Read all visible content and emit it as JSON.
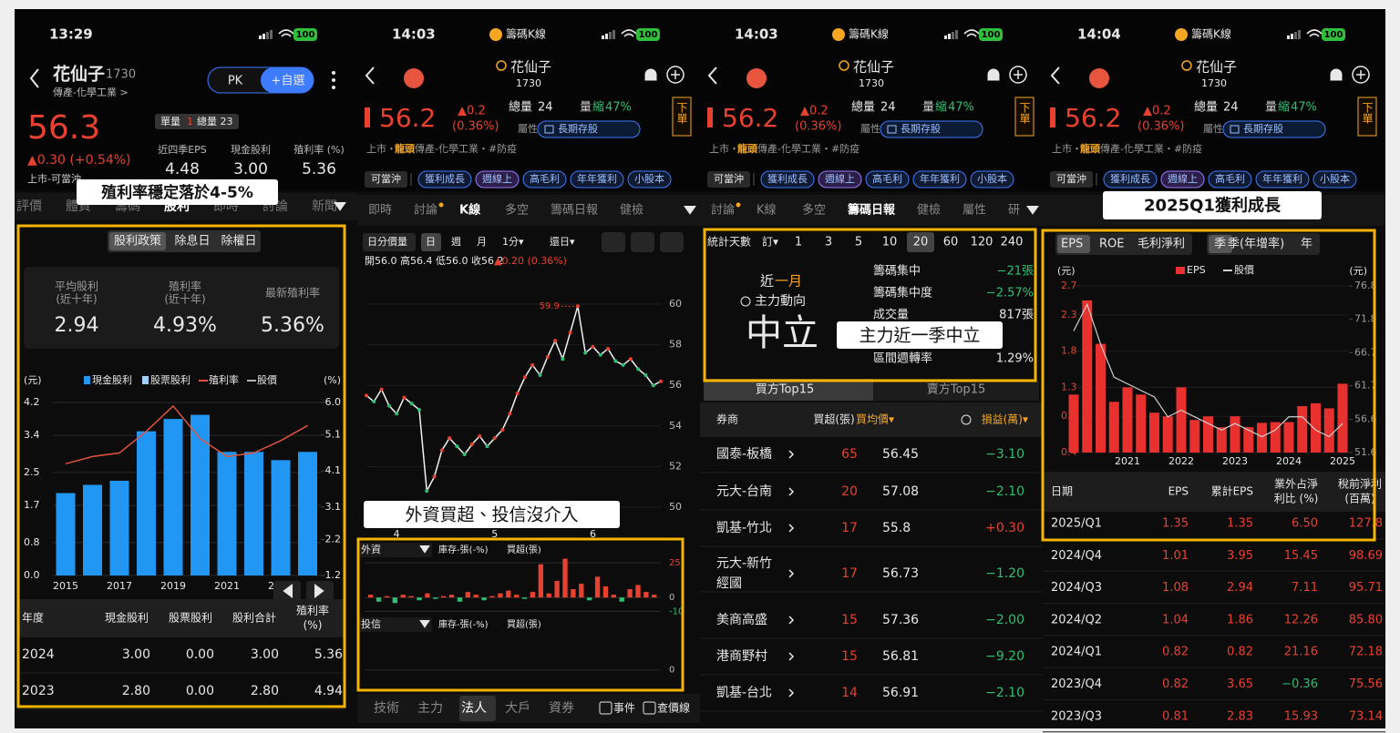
{
  "annotations": {
    "p1": "殖利率穩定落於4-5%",
    "p2": "外資買超、投信沒介入",
    "p3": "主力近一季中立",
    "p4": "2025Q1獲利成長"
  },
  "stock": {
    "name": "花仙子",
    "code": "1730"
  },
  "quote": {
    "app": "籌碼K線",
    "battery": "100",
    "price": "56.2",
    "change": "▲0.2",
    "change_pct": "(0.36%)",
    "total_vol_label": "總量",
    "total_vol": "24",
    "vol_ratio": [
      "量",
      "縮",
      "47%"
    ],
    "attr_label": "屬性",
    "attr": "長期存股",
    "order": "下單",
    "industry": [
      "上市・",
      "龍頭",
      "傳產-化學工業・#防疫"
    ],
    "tags": [
      "可當沖",
      "獲利成長",
      "週線上",
      "高毛利",
      "年年獲利",
      "小股本"
    ]
  },
  "panel1": {
    "time": "13:29",
    "battery": "100",
    "industry": "傳產-化學工業 >",
    "pk": "PK",
    "add": "+自選",
    "price": "56.3",
    "change": "▲0.30 (+0.54%)",
    "market": "上市-可當沖",
    "single_vol_label": "單量",
    "single_vol": "1",
    "total_vol": "總量 23",
    "stats": [
      [
        "近四季EPS",
        "4.48"
      ],
      [
        "現金股利",
        "3.00"
      ],
      [
        "殖利率 (%)",
        "5.36"
      ]
    ],
    "tabs": [
      "評價",
      "體質",
      "籌碼",
      "股利",
      "即時",
      "討論",
      "新聞"
    ],
    "sub_tabs": [
      "股利政策",
      "除息日",
      "除權日"
    ],
    "summary": [
      {
        "label": [
          "平均股利",
          "(近十年)"
        ],
        "value": "2.94"
      },
      {
        "label": [
          "殖利率",
          "(近十年)"
        ],
        "value": "4.93%"
      },
      {
        "label": [
          "最新殖利率"
        ],
        "value": "5.36%"
      }
    ],
    "chart": {
      "type": "bar",
      "y_unit": "(元)",
      "y2_unit": "(%)",
      "categories": [
        "2015",
        null,
        "2017",
        null,
        "2019",
        null,
        "2021",
        null,
        "2023",
        null
      ],
      "series": [
        {
          "name": "現金股利",
          "color": "#2196f3",
          "kind": "bar",
          "values": [
            2.0,
            2.2,
            2.3,
            3.5,
            3.8,
            3.9,
            3.0,
            3.0,
            2.8,
            3.0
          ]
        },
        {
          "name": "股票股利",
          "color": "#9fd0ff",
          "kind": "bar",
          "values": [
            0,
            0,
            0,
            0,
            0,
            0,
            0,
            0,
            0,
            0
          ]
        },
        {
          "name": "殖利率",
          "color": "#e0533f",
          "kind": "line",
          "axis": "y2",
          "values": [
            4.3,
            4.5,
            4.6,
            5.2,
            5.9,
            5.0,
            4.5,
            4.6,
            4.94,
            5.36
          ]
        }
      ],
      "extra_legend": {
        "name": "股價",
        "color": "#b0b0b0"
      },
      "ylim": [
        0,
        4.2
      ],
      "yticks": [
        {
          "value": 0,
          "label": "0.0"
        },
        0.8,
        1.7,
        2.5,
        3.4,
        4.2
      ],
      "y2lim": [
        1.2,
        6.0
      ],
      "y2ticks": [
        1.2,
        2.2,
        3.1,
        4.1,
        5.1,
        {
          "value": 6,
          "label": "6.0"
        }
      ]
    },
    "table": {
      "header": [
        "年度",
        "現金股利",
        "股票股利",
        "股利合計",
        [
          "殖利率",
          "(%)"
        ]
      ],
      "rows": [
        [
          "2024",
          "3.00",
          "0.00",
          "3.00",
          "5.36"
        ],
        [
          "2023",
          "2.80",
          "0.00",
          "2.80",
          "4.94"
        ]
      ]
    }
  },
  "panel2": {
    "time": "14:03",
    "tabs": [
      "即時",
      "討論",
      "K線",
      "多空",
      "籌碼日報",
      "健檢"
    ],
    "toolbar": [
      "日分價量",
      "日",
      "週",
      "月",
      "1分▾",
      "還日▾"
    ],
    "ohlc": "開56.0 高56.4 低56.0 收56.2",
    "ohlc_change": "▲0.20 (0.36%)",
    "kchart": {
      "type": "line",
      "color": "#f2f2f2",
      "peak_label": "59.9",
      "categories": [
        null,
        null,
        null,
        null,
        "4",
        null,
        null,
        null,
        null,
        null,
        null,
        null,
        null,
        null,
        null,
        null,
        null,
        "5",
        null,
        null,
        null,
        null,
        null,
        null,
        null,
        null,
        null,
        null,
        null,
        null,
        "6",
        null,
        null,
        null,
        null,
        null,
        null,
        null,
        null,
        null
      ],
      "close": [
        55.5,
        55.2,
        55.8,
        55.0,
        54.6,
        55.4,
        55.1,
        54.8,
        50.8,
        51.5,
        52.8,
        53.4,
        53.0,
        52.6,
        53.1,
        53.5,
        53.0,
        53.4,
        53.8,
        54.6,
        55.6,
        56.4,
        57.0,
        56.5,
        57.4,
        58.2,
        57.3,
        58.6,
        59.9,
        57.6,
        57.9,
        57.5,
        57.8,
        57.2,
        57.0,
        57.3,
        56.8,
        56.5,
        56.0,
        56.2
      ],
      "ylim": [
        50,
        60
      ],
      "yticks": [
        60,
        58,
        56,
        54,
        52,
        50
      ]
    },
    "foreign": {
      "type": "bar",
      "name": "外資",
      "legend": [
        "庫存-張(-%)",
        "買超(張)"
      ],
      "up_color": "#e8412f",
      "down_color": "#2fbf71",
      "values": [
        2,
        -3,
        1,
        -4,
        2,
        1,
        -2,
        3,
        -1,
        1,
        2,
        -3,
        4,
        2,
        -2,
        1,
        3,
        5,
        2,
        -1,
        4,
        24,
        3,
        12,
        28,
        6,
        10,
        -2,
        15,
        8,
        2,
        -3,
        6,
        9,
        4,
        2
      ],
      "ylim": [
        -13,
        29
      ],
      "yticks": [
        25,
        0,
        -10
      ]
    },
    "trust": {
      "name": "投信",
      "legend": [
        "庫存-張(-%)",
        "買超(張)"
      ],
      "ylim": [
        -10,
        25
      ],
      "yticks": [
        0
      ]
    },
    "bottom_tabs": [
      "技術",
      "主力",
      "法人",
      "大戶",
      "資券"
    ],
    "checks": [
      "事件",
      "查價線"
    ]
  },
  "panel3": {
    "time": "14:03",
    "tabs": [
      "討論",
      "K線",
      "多空",
      "籌碼日報",
      "健檢",
      "屬性",
      "研"
    ],
    "days_label": "統計天數",
    "order": "訂▾",
    "days": [
      "1",
      "3",
      "5",
      "10",
      "20",
      "60",
      "120",
      "240"
    ],
    "period": [
      "近",
      "一月"
    ],
    "flow_label": "主力動向",
    "flow": "中立",
    "metrics": [
      [
        "籌碼集中",
        "−21張"
      ],
      [
        "籌碼集中度",
        "−2.57%"
      ],
      [
        "成交量",
        "817張"
      ],
      [
        "區間週轉率",
        "1.29%"
      ]
    ],
    "sides": [
      "買方Top15",
      "賣方Top15"
    ],
    "header": [
      "券商",
      "買超(張)",
      "買均價▾",
      "損益(萬)▾"
    ],
    "rows": [
      [
        [
          "國泰-板橋"
        ],
        "65",
        "56.45",
        "−3.10"
      ],
      [
        [
          "元大-台南"
        ],
        "20",
        "57.08",
        "−2.10"
      ],
      [
        [
          "凱基-竹北"
        ],
        "17",
        "55.8",
        "+0.30"
      ],
      [
        [
          "元大-新竹",
          "經國"
        ],
        "17",
        "56.73",
        "−1.20"
      ],
      [
        [
          "美商高盛"
        ],
        "15",
        "57.36",
        "−2.00"
      ],
      [
        [
          "港商野村"
        ],
        "15",
        "56.81",
        "−9.20"
      ],
      [
        [
          "凱基-台北"
        ],
        "14",
        "56.91",
        "−2.10"
      ]
    ]
  },
  "panel4": {
    "time": "14:04",
    "metric_tabs": [
      "EPS",
      "ROE",
      "毛利淨利"
    ],
    "period_tabs": [
      "季",
      "季(年增率)",
      "年"
    ],
    "chart": {
      "type": "bar",
      "y_unit": "(元)",
      "y2_unit": "(元)",
      "categories": [
        null,
        null,
        null,
        null,
        "2021",
        null,
        null,
        null,
        "2022",
        null,
        null,
        null,
        "2023",
        null,
        null,
        null,
        "2024",
        null,
        null,
        null,
        "2025"
      ],
      "series": [
        {
          "name": "EPS",
          "color": "#e8312f",
          "kind": "bar",
          "values": [
            1.2,
            2.5,
            1.9,
            1.1,
            1.3,
            1.2,
            0.95,
            0.9,
            1.3,
            0.85,
            0.9,
            0.75,
            0.9,
            0.75,
            0.81,
            0.82,
            0.82,
            1.04,
            1.08,
            1.01,
            1.35
          ]
        },
        {
          "name": "股價",
          "color": "#cfcfcf",
          "kind": "line",
          "axis": "y2",
          "values": [
            70,
            74,
            68,
            63,
            62,
            61,
            60,
            57,
            58,
            57,
            56,
            55,
            56,
            55,
            54,
            55,
            57,
            57,
            55,
            54,
            56
          ]
        }
      ],
      "ylim": [
        0.4,
        2.7
      ],
      "yticks": [
        0.4,
        0.9,
        1.3,
        1.8,
        2.3,
        2.7
      ],
      "y2lim": [
        51.6,
        76.8
      ],
      "y2ticks": [
        51.6,
        56.6,
        61.7,
        66.7,
        71.8,
        76.8
      ]
    },
    "header": [
      "日期",
      "EPS",
      "累計EPS",
      [
        "業外占淨",
        "利比 (%)"
      ],
      [
        "稅前淨利",
        "(百萬)"
      ]
    ],
    "rows": [
      [
        "2025/Q1",
        "1.35",
        "1.35",
        "6.50",
        "127.8"
      ],
      [
        "2024/Q4",
        "1.01",
        "3.95",
        "15.45",
        "98.69"
      ],
      [
        "2024/Q3",
        "1.08",
        "2.94",
        "7.11",
        "95.71"
      ],
      [
        "2024/Q2",
        "1.04",
        "1.86",
        "12.26",
        "85.80"
      ],
      [
        "2024/Q1",
        "0.82",
        "0.82",
        "21.16",
        "72.18"
      ],
      [
        "2023/Q4",
        "0.82",
        "3.65",
        "−0.36",
        "75.56"
      ],
      [
        "2023/Q3",
        "0.81",
        "2.83",
        "15.93",
        "73.14"
      ]
    ]
  }
}
